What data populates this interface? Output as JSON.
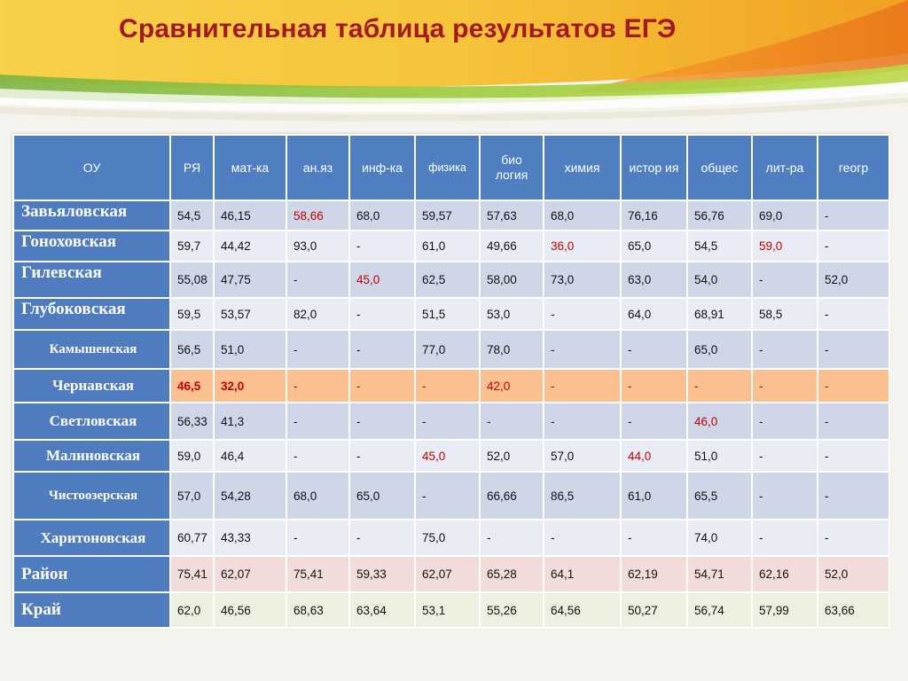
{
  "title": "Сравнительная таблица результатов ЕГЭ",
  "colors": {
    "title": "#a51820",
    "header_bg": "#4f7fc1",
    "row_odd": "#cfd6e8",
    "row_even": "#e9ecf4",
    "highlight_row": "#fac090",
    "rayon_row": "#f2dcdb",
    "kray_row": "#ebf1de",
    "red_value": "#c00000"
  },
  "table": {
    "headers": [
      "ОУ",
      "РЯ",
      "мат-ка",
      "ан.яз",
      "инф-ка",
      "физика",
      "био логия",
      "химия",
      "истор ия",
      "общес",
      "лит-ра",
      "геогр"
    ],
    "rows": [
      {
        "name": "Завьяловская",
        "values": [
          "54,5",
          "46,15",
          "58,66",
          "68,0",
          "59,57",
          "57,63",
          "68,0",
          "76,16",
          "56,76",
          "69,0",
          "-"
        ]
      },
      {
        "name": "Гоноховская",
        "values": [
          "59,7",
          "44,42",
          "93,0",
          "-",
          "61,0",
          "49,66",
          "36,0",
          "65,0",
          "54,5",
          "59,0",
          "-"
        ]
      },
      {
        "name": "Гилевская",
        "values": [
          "55,08",
          "47,75",
          "-",
          "45,0",
          "62,5",
          "58,00",
          "73,0",
          "63,0",
          "54,0",
          "-",
          "52,0"
        ]
      },
      {
        "name": "Глубоковская",
        "values": [
          "59,5",
          "53,57",
          "82,0",
          "-",
          "51,5",
          "53,0",
          "-",
          "64,0",
          "68,91",
          "58,5",
          "-"
        ]
      },
      {
        "name": "Камышенская",
        "values": [
          "56,5",
          "51,0",
          "-",
          "-",
          "77,0",
          "78,0",
          "-",
          "-",
          "65,0",
          "-",
          "-"
        ]
      },
      {
        "name": "Чернавская",
        "values": [
          "46,5",
          "32,0",
          "-",
          "-",
          "-",
          "42,0",
          "-",
          "-",
          "-",
          "-",
          "-"
        ]
      },
      {
        "name": "Светловская",
        "values": [
          "56,33",
          "41,3",
          "-",
          "-",
          "-",
          "-",
          "-",
          "-",
          "46,0",
          "-",
          "-"
        ]
      },
      {
        "name": "Малиновская",
        "values": [
          "59,0",
          "46,4",
          "-",
          "-",
          "45,0",
          "52,0",
          "57,0",
          "44,0",
          "51,0",
          "-",
          "-"
        ]
      },
      {
        "name": "Чистоозерская",
        "values": [
          "57,0",
          "54,28",
          "68,0",
          "65,0",
          "-",
          "66,66",
          "86,5",
          "61,0",
          "65,5",
          "-",
          "-"
        ]
      },
      {
        "name": "Харитоновская",
        "values": [
          "60,77",
          "43,33",
          "-",
          "-",
          "75,0",
          "-",
          "-",
          "-",
          "74,0",
          "-",
          "-"
        ]
      },
      {
        "name": "Район",
        "values": [
          "75,41",
          "62,07",
          "75,41",
          "59,33",
          "62,07",
          "65,28",
          "64,1",
          "62,19",
          "54,71",
          "62,16",
          "52,0"
        ]
      },
      {
        "name": "Край",
        "values": [
          "62,0",
          "46,56",
          "68,63",
          "63,64",
          "53,1",
          "55,26",
          "64,56",
          "50,27",
          "56,74",
          "57,99",
          "63,66"
        ]
      }
    ]
  }
}
